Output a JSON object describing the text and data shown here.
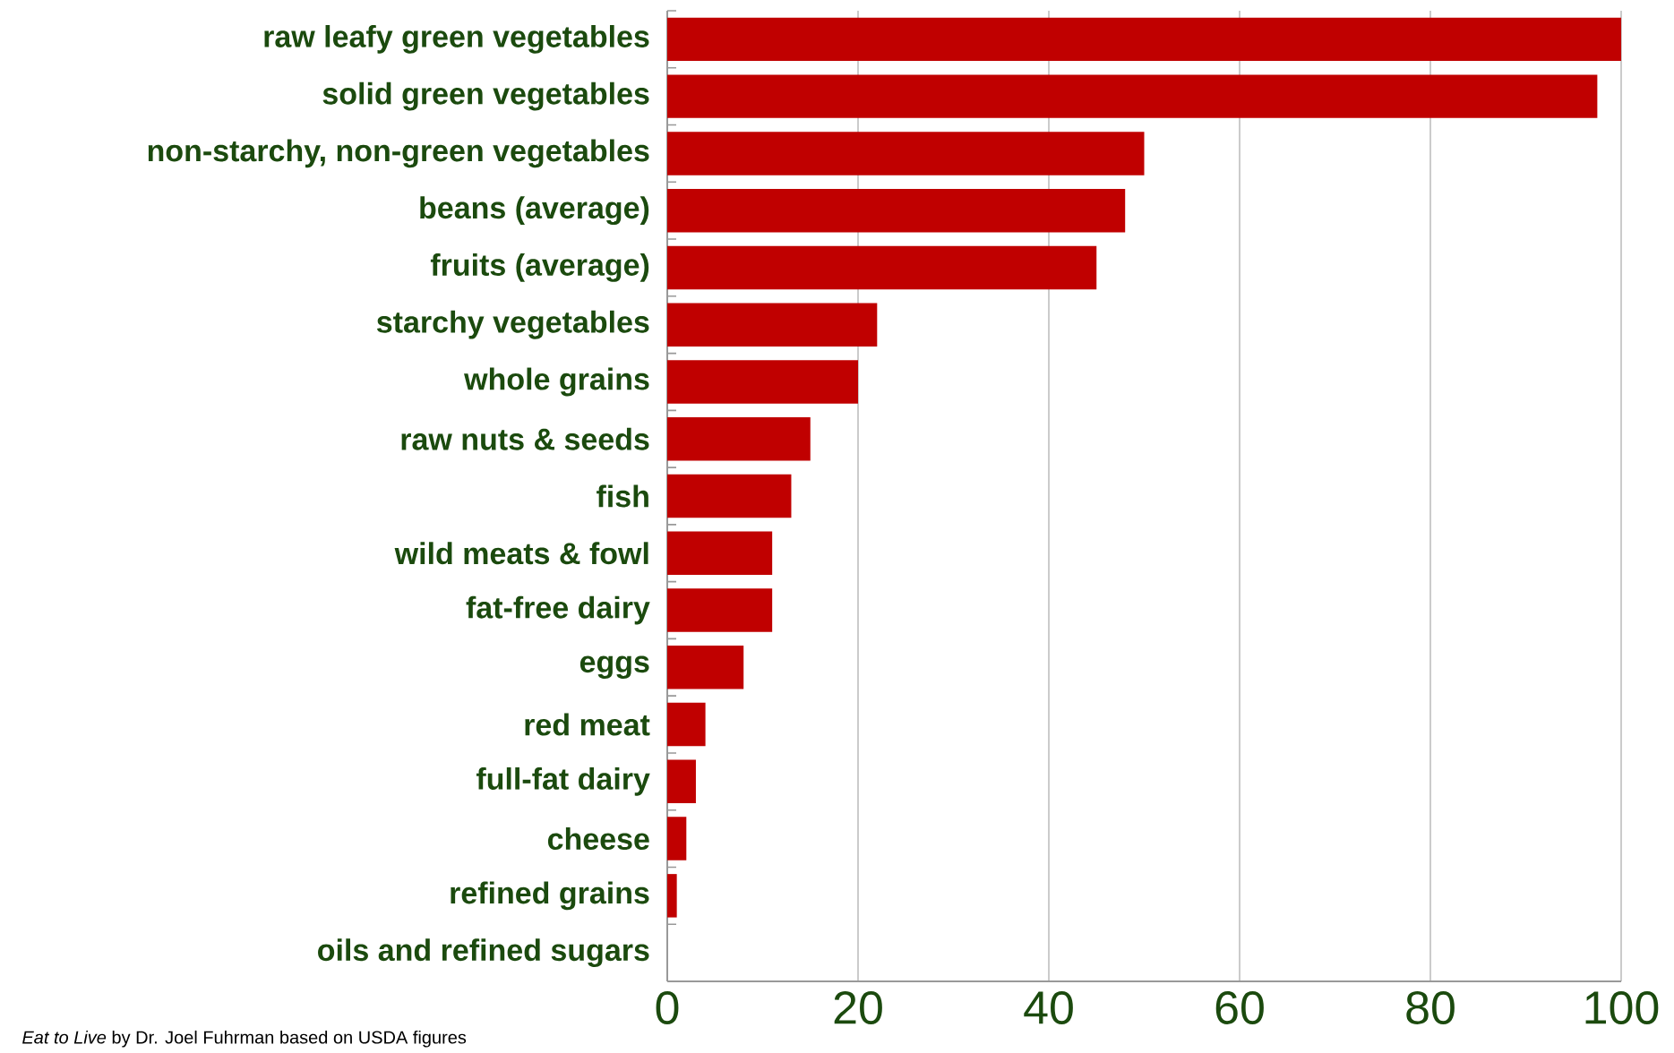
{
  "chart_data": {
    "type": "bar",
    "orientation": "horizontal",
    "categories": [
      "raw leafy green vegetables",
      "solid green vegetables",
      "non-starchy, non-green vegetables",
      "beans (average)",
      "fruits (average)",
      "starchy vegetables",
      "whole grains",
      "raw nuts & seeds",
      "fish",
      "wild meats & fowl",
      "fat-free dairy",
      "eggs",
      "red meat",
      "full-fat dairy",
      "cheese",
      "refined grains",
      "oils and refined sugars"
    ],
    "values": [
      100,
      97.5,
      50,
      48,
      45,
      22,
      20,
      15,
      13,
      11,
      11,
      8,
      4,
      3,
      2,
      1,
      0
    ],
    "color": "#c00000",
    "xlim": [
      0,
      100
    ],
    "xticks": [
      0,
      20,
      40,
      60,
      80,
      100
    ],
    "grid": "x",
    "annotations": [
      "*Eat to Live* by Dr. Joel Fuhrman based on USDA figures"
    ]
  }
}
